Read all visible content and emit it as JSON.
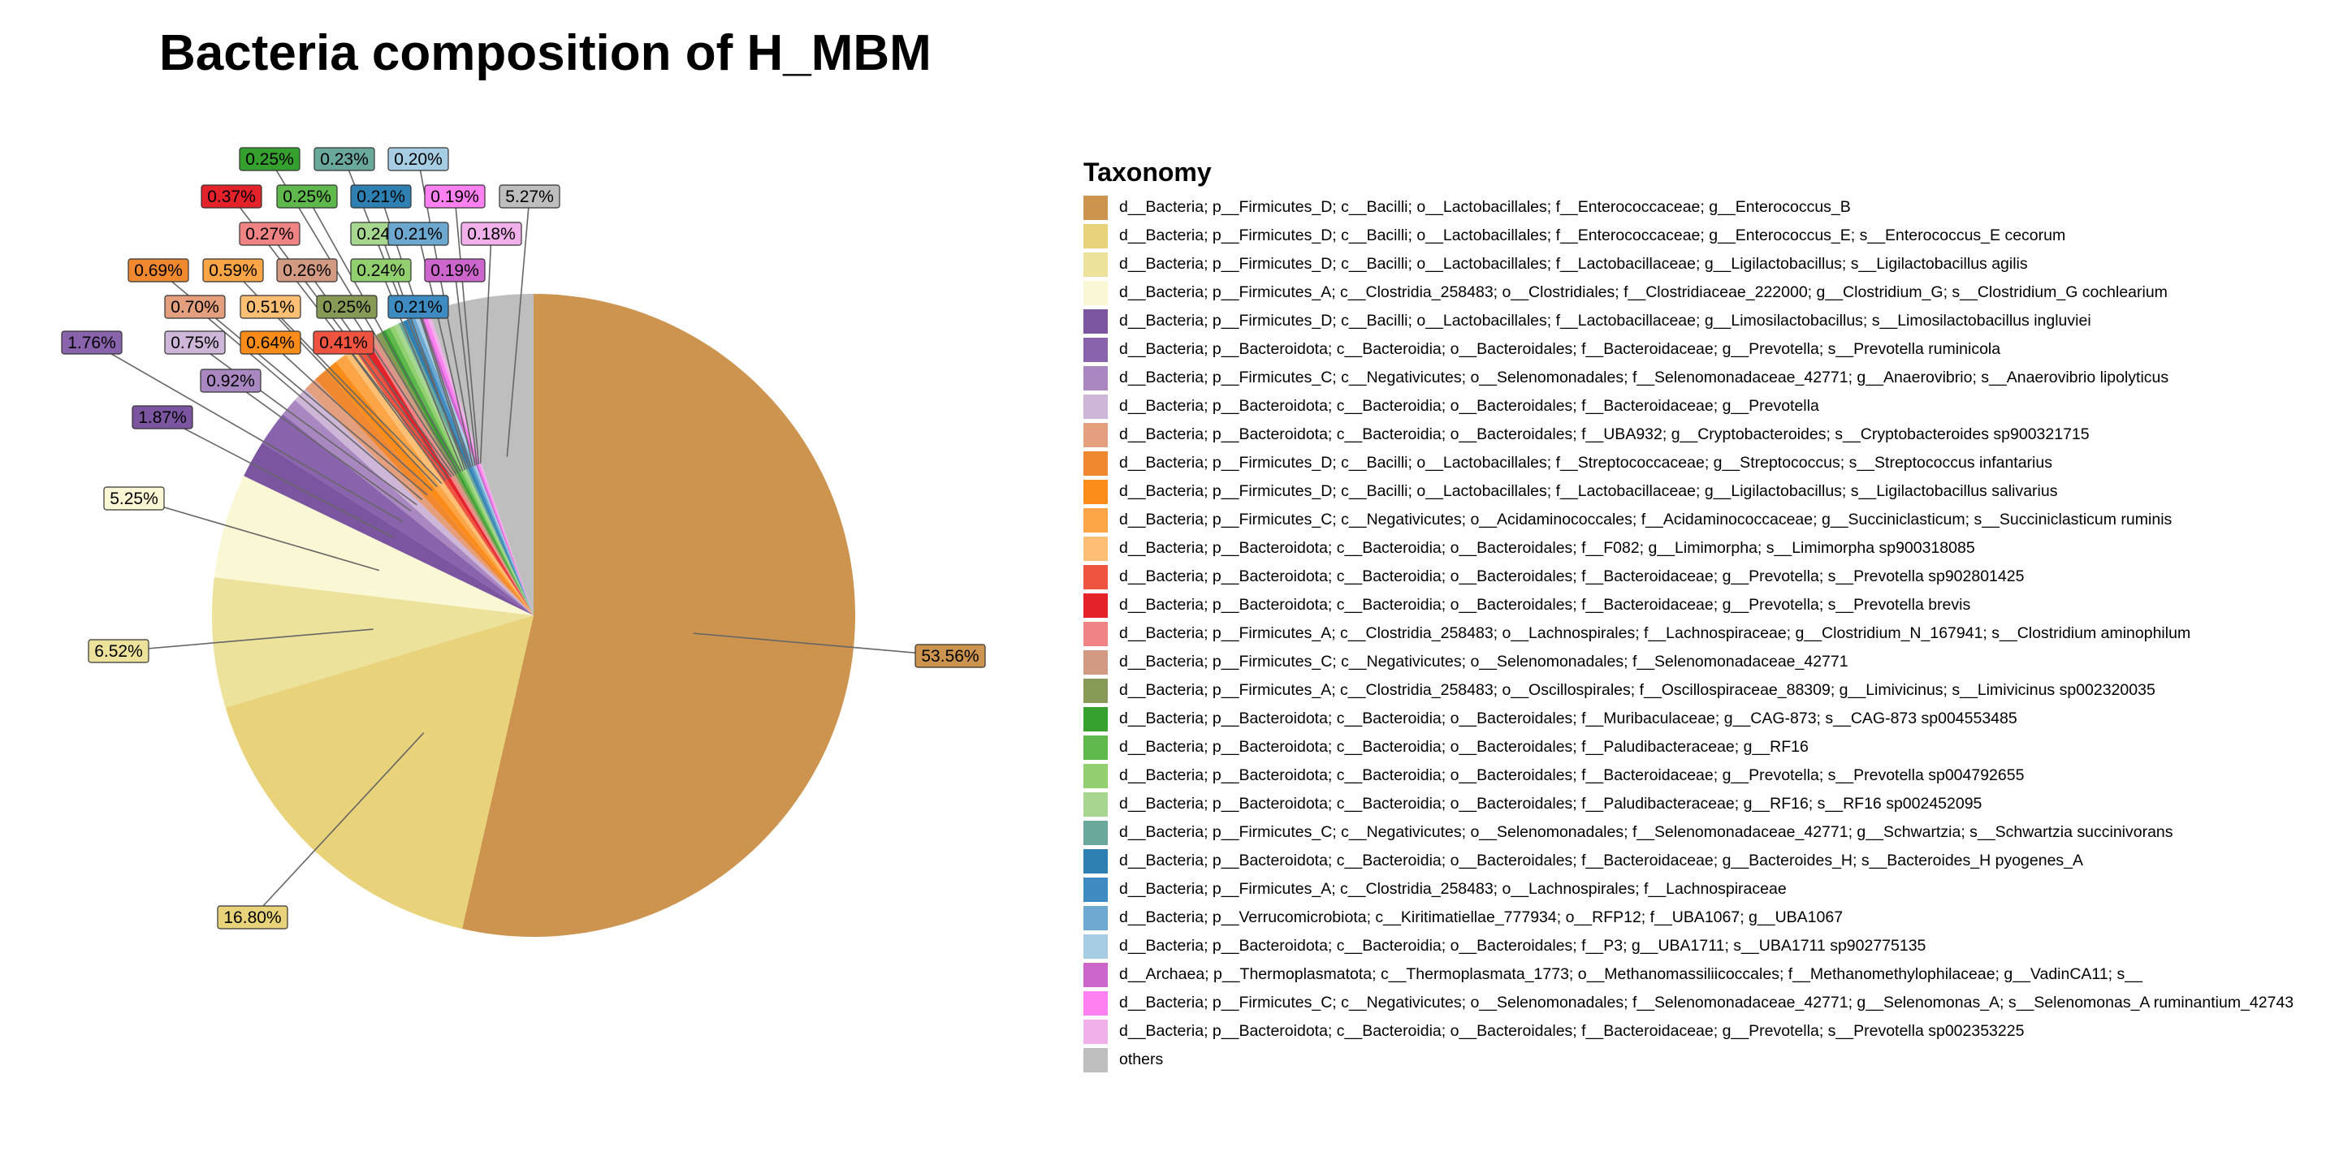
{
  "chart_data": {
    "type": "pie",
    "title": "Bacteria composition of H_MBM",
    "legend_title": "Taxonomy",
    "legend_position": "right",
    "slices": [
      {
        "label": "d__Bacteria; p__Firmicutes_D; c__Bacilli; o__Lactobacillales; f__Enterococcaceae; g__Enterococcus_B",
        "value": 53.56,
        "value_label": "53.56%",
        "color": "#CD9450"
      },
      {
        "label": "d__Bacteria; p__Firmicutes_D; c__Bacilli; o__Lactobacillales; f__Enterococcaceae; g__Enterococcus_E; s__Enterococcus_E cecorum",
        "value": 16.8,
        "value_label": "16.80%",
        "color": "#E8D37A"
      },
      {
        "label": "d__Bacteria; p__Firmicutes_D; c__Bacilli; o__Lactobacillales; f__Lactobacillaceae; g__Ligilactobacillus; s__Ligilactobacillus agilis",
        "value": 6.52,
        "value_label": "6.52%",
        "color": "#EDE29C"
      },
      {
        "label": "d__Bacteria; p__Firmicutes_A; c__Clostridia_258483; o__Clostridiales; f__Clostridiaceae_222000; g__Clostridium_G; s__Clostridium_G cochlearium",
        "value": 5.25,
        "value_label": "5.25%",
        "color": "#FAF8D4"
      },
      {
        "label": "d__Bacteria; p__Firmicutes_D; c__Bacilli; o__Lactobacillales; f__Lactobacillaceae; g__Limosilactobacillus; s__Limosilactobacillus ingluviei",
        "value": 1.87,
        "value_label": "1.87%",
        "color": "#7C55A0"
      },
      {
        "label": "d__Bacteria; p__Bacteroidota; c__Bacteroidia; o__Bacteroidales; f__Bacteroidaceae; g__Prevotella; s__Prevotella ruminicola",
        "value": 1.76,
        "value_label": "1.76%",
        "color": "#8A63AD"
      },
      {
        "label": "d__Bacteria; p__Firmicutes_C; c__Negativicutes; o__Selenomonadales; f__Selenomonadaceae_42771; g__Anaerovibrio; s__Anaerovibrio lipolyticus",
        "value": 0.92,
        "value_label": "0.92%",
        "color": "#A988C2"
      },
      {
        "label": "d__Bacteria; p__Bacteroidota; c__Bacteroidia; o__Bacteroidales; f__Bacteroidaceae; g__Prevotella",
        "value": 0.75,
        "value_label": "0.75%",
        "color": "#CDB6D7"
      },
      {
        "label": "d__Bacteria; p__Bacteroidota; c__Bacteroidia; o__Bacteroidales; f__UBA932; g__Cryptobacteroides; s__Cryptobacteroides sp900321715",
        "value": 0.7,
        "value_label": "0.70%",
        "color": "#E4A07E"
      },
      {
        "label": "d__Bacteria; p__Firmicutes_D; c__Bacilli; o__Lactobacillales; f__Streptococcaceae; g__Streptococcus; s__Streptococcus infantarius",
        "value": 0.69,
        "value_label": "0.69%",
        "color": "#F08830"
      },
      {
        "label": "d__Bacteria; p__Firmicutes_D; c__Bacilli; o__Lactobacillales; f__Lactobacillaceae; g__Ligilactobacillus; s__Ligilactobacillus salivarius",
        "value": 0.64,
        "value_label": "0.64%",
        "color": "#FB8C1A"
      },
      {
        "label": "d__Bacteria; p__Firmicutes_C; c__Negativicutes; o__Acidaminococcales; f__Acidaminococcaceae; g__Succiniclasticum; s__Succiniclasticum ruminis",
        "value": 0.59,
        "value_label": "0.59%",
        "color": "#FBA546"
      },
      {
        "label": "d__Bacteria; p__Bacteroidota; c__Bacteroidia; o__Bacteroidales; f__F082; g__Limimorpha; s__Limimorpha sp900318085",
        "value": 0.51,
        "value_label": "0.51%",
        "color": "#FCBF74"
      },
      {
        "label": "d__Bacteria; p__Bacteroidota; c__Bacteroidia; o__Bacteroidales; f__Bacteroidaceae; g__Prevotella; s__Prevotella sp902801425",
        "value": 0.41,
        "value_label": "0.41%",
        "color": "#EE5440"
      },
      {
        "label": "d__Bacteria; p__Bacteroidota; c__Bacteroidia; o__Bacteroidales; f__Bacteroidaceae; g__Prevotella; s__Prevotella brevis",
        "value": 0.37,
        "value_label": "0.37%",
        "color": "#E3222A"
      },
      {
        "label": "d__Bacteria; p__Firmicutes_A; c__Clostridia_258483; o__Lachnospirales; f__Lachnospiraceae; g__Clostridium_N_167941; s__Clostridium aminophilum",
        "value": 0.27,
        "value_label": "0.27%",
        "color": "#F08484"
      },
      {
        "label": "d__Bacteria; p__Firmicutes_C; c__Negativicutes; o__Selenomonadales; f__Selenomonadaceae_42771",
        "value": 0.26,
        "value_label": "0.26%",
        "color": "#D29A82"
      },
      {
        "label": "d__Bacteria; p__Firmicutes_A; c__Clostridia_258483; o__Oscillospirales; f__Oscillospiraceae_88309; g__Limivicinus; s__Limivicinus sp002320035",
        "value": 0.25,
        "value_label": "0.25%",
        "color": "#869A56"
      },
      {
        "label": "d__Bacteria; p__Bacteroidota; c__Bacteroidia; o__Bacteroidales; f__Muribaculaceae; g__CAG-873; s__CAG-873 sp004553485",
        "value": 0.25,
        "value_label": "0.25%",
        "color": "#36A02E"
      },
      {
        "label": "d__Bacteria; p__Bacteroidota; c__Bacteroidia; o__Bacteroidales; f__Paludibacteraceae; g__RF16",
        "value": 0.25,
        "value_label": "0.25%",
        "color": "#5EB84C"
      },
      {
        "label": "d__Bacteria; p__Bacteroidota; c__Bacteroidia; o__Bacteroidales; f__Bacteroidaceae; g__Prevotella; s__Prevotella sp004792655",
        "value": 0.24,
        "value_label": "0.24%",
        "color": "#92D06F"
      },
      {
        "label": "d__Bacteria; p__Bacteroidota; c__Bacteroidia; o__Bacteroidales; f__Paludibacteraceae; g__RF16; s__RF16 sp002452095",
        "value": 0.24,
        "value_label": "0.24%",
        "color": "#A6D690"
      },
      {
        "label": "d__Bacteria; p__Firmicutes_C; c__Negativicutes; o__Selenomonadales; f__Selenomonadaceae_42771; g__Schwartzia; s__Schwartzia succinivorans",
        "value": 0.23,
        "value_label": "0.23%",
        "color": "#6BA89C"
      },
      {
        "label": "d__Bacteria; p__Bacteroidota; c__Bacteroidia; o__Bacteroidales; f__Bacteroidaceae; g__Bacteroides_H; s__Bacteroides_H pyogenes_A",
        "value": 0.21,
        "value_label": "0.21%",
        "color": "#2E80B2"
      },
      {
        "label": "d__Bacteria; p__Firmicutes_A; c__Clostridia_258483; o__Lachnospirales; f__Lachnospiraceae",
        "value": 0.21,
        "value_label": "0.21%",
        "color": "#3D8BC0"
      },
      {
        "label": "d__Bacteria; p__Verrucomicrobiota; c__Kiritimatiellae_777934; o__RFP12; f__UBA1067; g__UBA1067",
        "value": 0.21,
        "value_label": "0.21%",
        "color": "#6DA8D0"
      },
      {
        "label": "d__Bacteria; p__Bacteroidota; c__Bacteroidia; o__Bacteroidales; f__P3; g__UBA1711; s__UBA1711 sp902775135",
        "value": 0.2,
        "value_label": "0.20%",
        "color": "#A6CDE3"
      },
      {
        "label": "d__Archaea; p__Thermoplasmatota; c__Thermoplasmata_1773; o__Methanomassiliicoccales; f__Methanomethylophilaceae; g__VadinCA11; s__",
        "value": 0.19,
        "value_label": "0.19%",
        "color": "#CC66CC"
      },
      {
        "label": "d__Bacteria; p__Firmicutes_C; c__Negativicutes; o__Selenomonadales; f__Selenomonadaceae_42771; g__Selenomonas_A; s__Selenomonas_A ruminantium_42743",
        "value": 0.19,
        "value_label": "0.19%",
        "color": "#FF80F0"
      },
      {
        "label": "d__Bacteria; p__Bacteroidota; c__Bacteroidia; o__Bacteroidales; f__Bacteroidaceae; g__Prevotella; s__Prevotella sp002353225",
        "value": 0.18,
        "value_label": "0.18%",
        "color": "#F0B0EA"
      },
      {
        "label": "others",
        "value": 5.27,
        "value_label": "5.27%",
        "color": "#BEBEBE"
      }
    ]
  }
}
